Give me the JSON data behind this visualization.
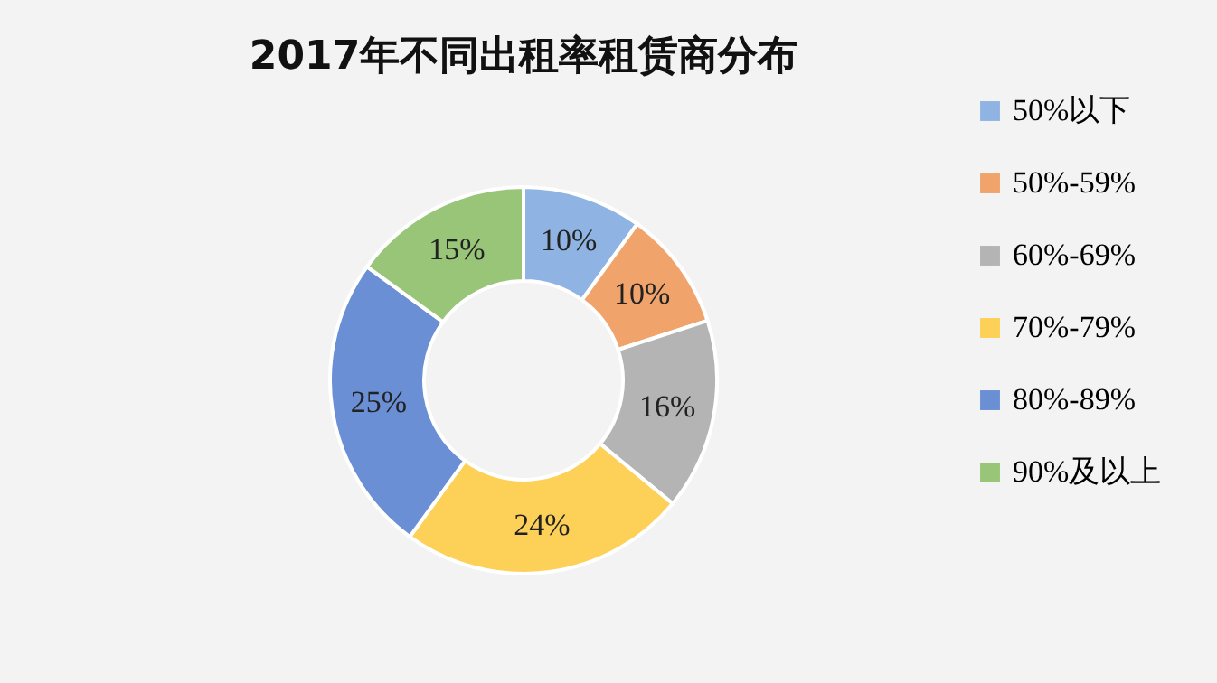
{
  "chart_data": {
    "type": "donut",
    "title": "2017年不同出租率租赁商分布",
    "categories": [
      "50%以下",
      "50%-59%",
      "60%-69%",
      "70%-79%",
      "80%-89%",
      "90%及以上"
    ],
    "values": [
      10,
      10,
      16,
      24,
      25,
      15
    ],
    "colors": [
      "#8fb4e3",
      "#f0a46c",
      "#b4b4b4",
      "#fdd158",
      "#6a8fd4",
      "#98c578"
    ],
    "value_labels": [
      "10%",
      "10%",
      "16%",
      "24%",
      "25%",
      "15%"
    ],
    "legend": "right"
  }
}
